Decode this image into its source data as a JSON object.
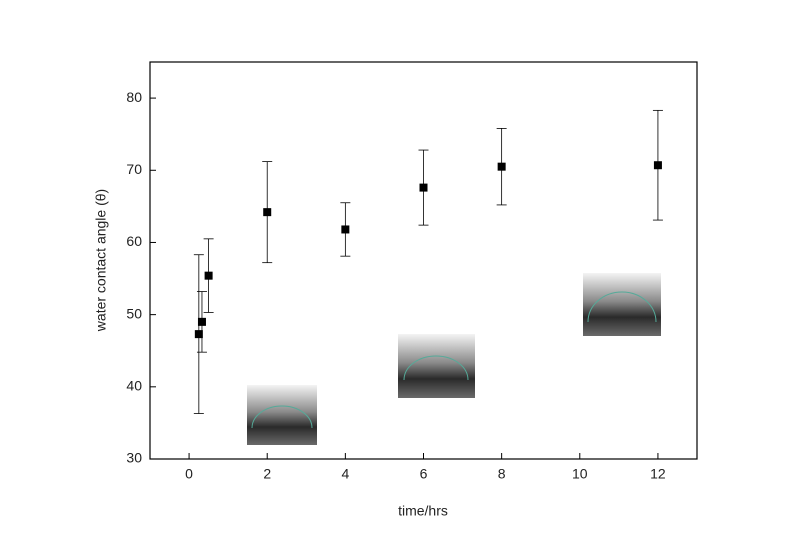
{
  "chart_data": {
    "type": "scatter",
    "x_label": "time/hrs",
    "y_label": "water contact angle (θ)",
    "xlim": [
      -1,
      13
    ],
    "ylim": [
      30,
      85
    ],
    "xticks": [
      0,
      2,
      4,
      6,
      8,
      10,
      12
    ],
    "yticks": [
      30,
      40,
      50,
      60,
      70,
      80
    ],
    "series": [
      {
        "color": "#000000",
        "x": [
          0.25,
          0.33,
          0.5,
          2,
          4,
          6,
          8,
          12
        ],
        "values": [
          47.3,
          49.0,
          55.4,
          64.2,
          61.8,
          67.6,
          70.5,
          70.7
        ],
        "errors": [
          11.0,
          4.2,
          5.1,
          7.0,
          3.7,
          5.2,
          5.3,
          7.6
        ]
      }
    ]
  }
}
